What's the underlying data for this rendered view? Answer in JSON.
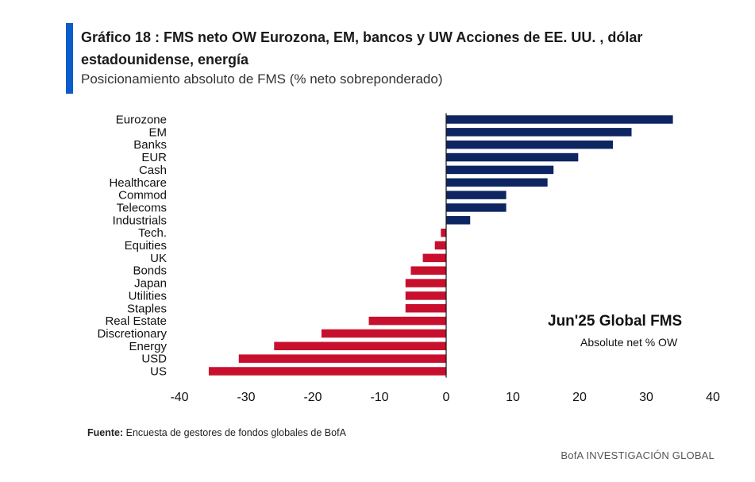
{
  "header": {
    "title": "Gráfico 18 : FMS neto OW Eurozona, EM, bancos y UW Acciones de EE. UU. , dólar estadounidense, energía",
    "subtitle": "Posicionamiento absoluto de FMS (% neto sobreponderado)"
  },
  "colors": {
    "accent": "#0b5cc9",
    "positive": "#0d2561",
    "negative": "#c8102e"
  },
  "annotation": {
    "title": "Jun'25 Global FMS",
    "subtitle": "Absolute net % OW"
  },
  "footer": {
    "source_label": "Fuente:",
    "source_text": "Encuesta de gestores de fondos globales de BofA",
    "brand": "BofA INVESTIGACIÓN GLOBAL"
  },
  "chart_data": {
    "type": "bar",
    "orientation": "horizontal",
    "title": "Jun'25 Global FMS",
    "subtitle": "Absolute net % OW",
    "xlabel": "",
    "ylabel": "",
    "xlim": [
      -40,
      40
    ],
    "x_ticks": [
      "-40",
      "-30",
      "-20",
      "-10",
      "0",
      "10",
      "20",
      "30",
      "40"
    ],
    "grid": false,
    "categories": [
      "Eurozone",
      "EM",
      "Banks",
      "EUR",
      "Cash",
      "Healthcare",
      "Commod",
      "Telecoms",
      "Industrials",
      "Tech.",
      "Equities",
      "UK",
      "Bonds",
      "Japan",
      "Utilities",
      "Staples",
      "Real Estate",
      "Discretionary",
      "Energy",
      "USD",
      "US"
    ],
    "values": [
      34,
      27.8,
      25,
      19.8,
      16.1,
      15.2,
      9,
      9,
      3.6,
      -0.8,
      -1.7,
      -3.5,
      -5.3,
      -6.1,
      -6.1,
      -6.1,
      -11.6,
      -18.7,
      -25.8,
      -31.1,
      -35.6
    ]
  }
}
